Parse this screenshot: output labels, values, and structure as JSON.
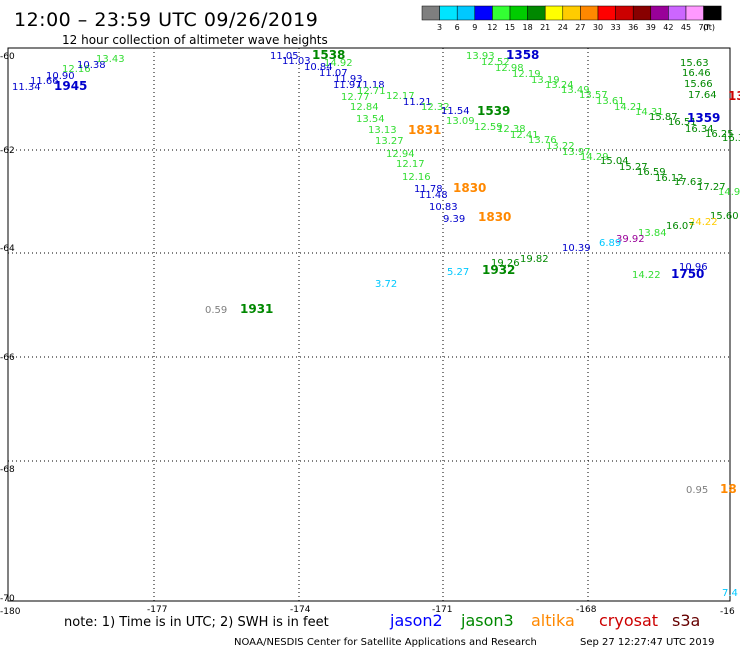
{
  "title": "12:00 – 23:59 UTC 09/26/2019",
  "subtitle": "12 hour collection of altimeter wave heights",
  "legend": {
    "values": [
      "3",
      "6",
      "9",
      "12",
      "15",
      "18",
      "21",
      "24",
      "27",
      "30",
      "33",
      "36",
      "39",
      "42",
      "45",
      "70"
    ],
    "unit": "(ft)",
    "colors": [
      "#7f7f7f",
      "#00e5ff",
      "#00c8ff",
      "#0000ff",
      "#33ff33",
      "#00cc00",
      "#008800",
      "#ffff00",
      "#ffcc00",
      "#ff8800",
      "#ff0000",
      "#cc0000",
      "#880000",
      "#990099",
      "#cc66ff",
      "#ff99ff",
      "#000000"
    ]
  },
  "axes": {
    "lat_labels": [
      "-60",
      "-62",
      "-64",
      "-66",
      "-68",
      "-70"
    ],
    "lon_labels": [
      "-180",
      "-177",
      "-174",
      "-171",
      "-168",
      "-16"
    ]
  },
  "points": [
    {
      "text": "11.34",
      "c": "#0000cc",
      "k": "s"
    },
    {
      "text": "11.66",
      "c": "#0000cc",
      "k": "s"
    },
    {
      "text": "10.90",
      "c": "#0000cc",
      "k": "s"
    },
    {
      "text": "12.16",
      "c": "#33dd33",
      "k": "s"
    },
    {
      "text": "10.38",
      "c": "#0000cc",
      "k": "s"
    },
    {
      "text": "13.43",
      "c": "#33dd33",
      "k": "s"
    },
    {
      "text": "1945",
      "c": "#0000cc",
      "k": "t"
    },
    {
      "text": "11.05",
      "c": "#0000cc",
      "k": "s"
    },
    {
      "text": "1538",
      "c": "#008800",
      "k": "t"
    },
    {
      "text": "11.03",
      "c": "#0000cc",
      "k": "s"
    },
    {
      "text": "14.92",
      "c": "#33dd33",
      "k": "s"
    },
    {
      "text": "10.84",
      "c": "#0000cc",
      "k": "s"
    },
    {
      "text": "11.07",
      "c": "#0000cc",
      "k": "s"
    },
    {
      "text": "11.93",
      "c": "#0000cc",
      "k": "s"
    },
    {
      "text": "11.97",
      "c": "#0000cc",
      "k": "s"
    },
    {
      "text": "11.18",
      "c": "#0000cc",
      "k": "s"
    },
    {
      "text": "12.71",
      "c": "#33dd33",
      "k": "s"
    },
    {
      "text": "12.77",
      "c": "#33dd33",
      "k": "s"
    },
    {
      "text": "12.17",
      "c": "#33dd33",
      "k": "s"
    },
    {
      "text": "12.84",
      "c": "#33dd33",
      "k": "s"
    },
    {
      "text": "11.21",
      "c": "#0000cc",
      "k": "s"
    },
    {
      "text": "12.32",
      "c": "#33dd33",
      "k": "s"
    },
    {
      "text": "13.54",
      "c": "#33dd33",
      "k": "s"
    },
    {
      "text": "11.54",
      "c": "#0000cc",
      "k": "s"
    },
    {
      "text": "1539",
      "c": "#008800",
      "k": "t"
    },
    {
      "text": "13.13",
      "c": "#33dd33",
      "k": "s"
    },
    {
      "text": "1831",
      "c": "#ff8800",
      "k": "t"
    },
    {
      "text": "13.09",
      "c": "#33dd33",
      "k": "s"
    },
    {
      "text": "12.59",
      "c": "#33dd33",
      "k": "s"
    },
    {
      "text": "12.38",
      "c": "#33dd33",
      "k": "s"
    },
    {
      "text": "13.27",
      "c": "#33dd33",
      "k": "s"
    },
    {
      "text": "12.41",
      "c": "#33dd33",
      "k": "s"
    },
    {
      "text": "12.94",
      "c": "#33dd33",
      "k": "s"
    },
    {
      "text": "12.17",
      "c": "#33dd33",
      "k": "s"
    },
    {
      "text": "12.16",
      "c": "#33dd33",
      "k": "s"
    },
    {
      "text": "11.78",
      "c": "#0000cc",
      "k": "s"
    },
    {
      "text": "1830",
      "c": "#ff8800",
      "k": "t"
    },
    {
      "text": "11.48",
      "c": "#0000cc",
      "k": "s"
    },
    {
      "text": "10.83",
      "c": "#0000cc",
      "k": "s"
    },
    {
      "text": "9.39",
      "c": "#0000cc",
      "k": "s"
    },
    {
      "text": "1830",
      "c": "#ff8800",
      "k": "t"
    },
    {
      "text": "13.93",
      "c": "#33dd33",
      "k": "s"
    },
    {
      "text": "1358",
      "c": "#0000cc",
      "k": "t"
    },
    {
      "text": "12.52",
      "c": "#33dd33",
      "k": "s"
    },
    {
      "text": "12.98",
      "c": "#33dd33",
      "k": "s"
    },
    {
      "text": "12.19",
      "c": "#33dd33",
      "k": "s"
    },
    {
      "text": "13.19",
      "c": "#33dd33",
      "k": "s"
    },
    {
      "text": "13.24",
      "c": "#33dd33",
      "k": "s"
    },
    {
      "text": "13.49",
      "c": "#33dd33",
      "k": "s"
    },
    {
      "text": "13.57",
      "c": "#33dd33",
      "k": "s"
    },
    {
      "text": "13.61",
      "c": "#33dd33",
      "k": "s"
    },
    {
      "text": "14.21",
      "c": "#33dd33",
      "k": "s"
    },
    {
      "text": "14.31",
      "c": "#33dd33",
      "k": "s"
    },
    {
      "text": "13.76",
      "c": "#33dd33",
      "k": "s"
    },
    {
      "text": "13.22",
      "c": "#33dd33",
      "k": "s"
    },
    {
      "text": "13.97",
      "c": "#33dd33",
      "k": "s"
    },
    {
      "text": "14.29",
      "c": "#33dd33",
      "k": "s"
    },
    {
      "text": "15.04",
      "c": "#008800",
      "k": "s"
    },
    {
      "text": "15.27",
      "c": "#008800",
      "k": "s"
    },
    {
      "text": "16.59",
      "c": "#008800",
      "k": "s"
    },
    {
      "text": "16.12",
      "c": "#008800",
      "k": "s"
    },
    {
      "text": "17.63",
      "c": "#008800",
      "k": "s"
    },
    {
      "text": "17.27",
      "c": "#008800",
      "k": "s"
    },
    {
      "text": "14.93",
      "c": "#33dd33",
      "k": "s"
    },
    {
      "text": "15.63",
      "c": "#008800",
      "k": "s"
    },
    {
      "text": "16.46",
      "c": "#008800",
      "k": "s"
    },
    {
      "text": "15.66",
      "c": "#008800",
      "k": "s"
    },
    {
      "text": "17.64",
      "c": "#008800",
      "k": "s"
    },
    {
      "text": "13",
      "c": "#cc0000",
      "k": "t"
    },
    {
      "text": "15.87",
      "c": "#008800",
      "k": "s"
    },
    {
      "text": "16.51",
      "c": "#008800",
      "k": "s"
    },
    {
      "text": "1359",
      "c": "#0000cc",
      "k": "t"
    },
    {
      "text": "16.34",
      "c": "#008800",
      "k": "s"
    },
    {
      "text": "16.25",
      "c": "#008800",
      "k": "s"
    },
    {
      "text": "16.3",
      "c": "#008800",
      "k": "s"
    },
    {
      "text": "15.60",
      "c": "#008800",
      "k": "s"
    },
    {
      "text": "24.22",
      "c": "#ffcc00",
      "k": "s"
    },
    {
      "text": "16.07",
      "c": "#008800",
      "k": "s"
    },
    {
      "text": "13.84",
      "c": "#33dd33",
      "k": "s"
    },
    {
      "text": "39.92",
      "c": "#990099",
      "k": "s"
    },
    {
      "text": "6.89",
      "c": "#00c8ff",
      "k": "s"
    },
    {
      "text": "10.39",
      "c": "#0000cc",
      "k": "s"
    },
    {
      "text": "19.82",
      "c": "#008800",
      "k": "s"
    },
    {
      "text": "19.26",
      "c": "#008800",
      "k": "s"
    },
    {
      "text": "1932",
      "c": "#008800",
      "k": "t"
    },
    {
      "text": "5.27",
      "c": "#00c8ff",
      "k": "s"
    },
    {
      "text": "3.72",
      "c": "#00c8ff",
      "k": "s"
    },
    {
      "text": "14.22",
      "c": "#33dd33",
      "k": "s"
    },
    {
      "text": "10.96",
      "c": "#0000cc",
      "k": "s"
    },
    {
      "text": "1750",
      "c": "#0000cc",
      "k": "t"
    },
    {
      "text": "0.59",
      "c": "#7f7f7f",
      "k": "s"
    },
    {
      "text": "1931",
      "c": "#008800",
      "k": "t"
    },
    {
      "text": "0.95",
      "c": "#7f7f7f",
      "k": "s"
    },
    {
      "text": "18",
      "c": "#ff8800",
      "k": "t"
    },
    {
      "text": "7.4",
      "c": "#00c8ff",
      "k": "s"
    }
  ],
  "note": "note: 1) Time is in UTC; 2) SWH is in feet",
  "satellites": [
    {
      "name": "jason2",
      "color": "#0000ff"
    },
    {
      "name": "jason3",
      "color": "#008800"
    },
    {
      "name": "altika",
      "color": "#ff8800"
    },
    {
      "name": "cryosat",
      "color": "#cc0000"
    },
    {
      "name": "s3a",
      "color": "#660000"
    }
  ],
  "footer_left": "NOAA/NESDIS Center for Satellite Applications and Research",
  "footer_right": "Sep 27 12:27:47 UTC 2019"
}
